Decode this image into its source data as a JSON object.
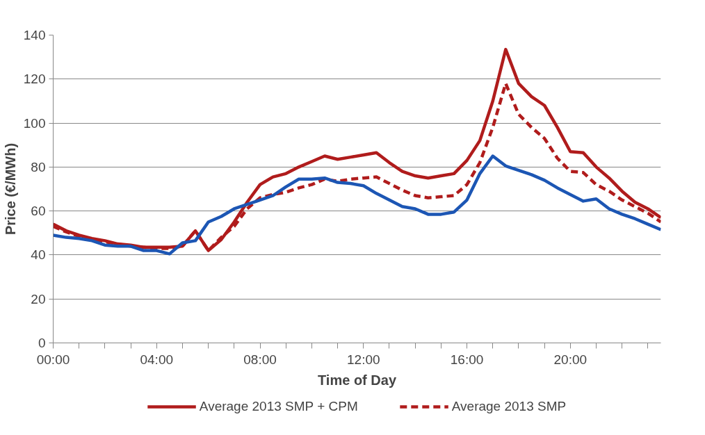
{
  "chart_data": {
    "type": "line",
    "xlabel": "Time of Day",
    "ylabel": "Price (€/MWh)",
    "x": [
      0,
      0.5,
      1,
      1.5,
      2,
      2.5,
      3,
      3.5,
      4,
      4.5,
      5,
      5.5,
      6,
      6.5,
      7,
      7.5,
      8,
      8.5,
      9,
      9.5,
      10,
      10.5,
      11,
      11.5,
      12,
      12.5,
      13,
      13.5,
      14,
      14.5,
      15,
      15.5,
      16,
      16.5,
      17,
      17.5,
      18,
      18.5,
      19,
      19.5,
      20,
      20.5,
      21,
      21.5,
      22,
      22.5,
      23,
      23.5
    ],
    "series": [
      {
        "name": "Average 2013 SMP + CPM",
        "color": "#b01c1c",
        "line_style": "solid",
        "values": [
          54,
          51,
          49,
          47.5,
          46.5,
          45,
          44.5,
          43.5,
          43.5,
          43.5,
          44,
          51,
          42,
          47,
          55,
          64,
          72,
          75.5,
          77,
          80,
          82.5,
          85,
          83.5,
          84.5,
          85.5,
          86.5,
          82,
          78,
          76,
          75,
          76,
          77,
          83,
          92,
          110,
          133.5,
          118,
          112,
          108,
          98,
          87,
          86.5,
          80,
          75,
          69,
          64,
          61,
          57
        ]
      },
      {
        "name": "Average 2013 SMP",
        "color": "#b01c1c",
        "line_style": "dashed",
        "values": [
          53,
          50.5,
          48.5,
          47,
          46,
          45,
          44,
          43.5,
          43,
          43,
          44,
          51,
          42,
          48,
          53,
          61,
          66,
          67.5,
          68.5,
          70.5,
          72,
          74.5,
          73.5,
          74.5,
          75,
          75.5,
          72.5,
          69.5,
          67,
          66,
          66.5,
          67,
          72,
          82,
          98,
          118,
          104,
          98,
          93,
          84,
          78,
          77.5,
          72,
          69,
          65,
          62,
          59,
          55
        ]
      },
      {
        "color": "#1c56b4",
        "line_style": "solid",
        "values": [
          49,
          48,
          47.5,
          46.5,
          44.5,
          44,
          44,
          42,
          42,
          40.5,
          45.5,
          46.5,
          55,
          57.5,
          61,
          63,
          65,
          67,
          71,
          74.5,
          74.5,
          75,
          73,
          72.5,
          71.5,
          68,
          65,
          62,
          61,
          58.5,
          58.5,
          59.5,
          65,
          77,
          85,
          80.5,
          78.5,
          76.5,
          74,
          70.5,
          67.5,
          64.5,
          65.5,
          61,
          58.5,
          56.5,
          54,
          51.5
        ]
      }
    ],
    "xlim": [
      0,
      23.5
    ],
    "xticks": [
      {
        "value": 0,
        "label": "00:00"
      },
      {
        "value": 1,
        "label": null
      },
      {
        "value": 2,
        "label": null
      },
      {
        "value": 3,
        "label": null
      },
      {
        "value": 4,
        "label": "04:00"
      },
      {
        "value": 5,
        "label": null
      },
      {
        "value": 6,
        "label": null
      },
      {
        "value": 7,
        "label": null
      },
      {
        "value": 8,
        "label": "08:00"
      },
      {
        "value": 9,
        "label": null
      },
      {
        "value": 10,
        "label": null
      },
      {
        "value": 11,
        "label": null
      },
      {
        "value": 12,
        "label": "12:00"
      },
      {
        "value": 13,
        "label": null
      },
      {
        "value": 14,
        "label": null
      },
      {
        "value": 15,
        "label": null
      },
      {
        "value": 16,
        "label": "16:00"
      },
      {
        "value": 17,
        "label": null
      },
      {
        "value": 18,
        "label": null
      },
      {
        "value": 19,
        "label": null
      },
      {
        "value": 20,
        "label": "20:00"
      },
      {
        "value": 21,
        "label": null
      },
      {
        "value": 22,
        "label": null
      },
      {
        "value": 23,
        "label": null
      }
    ],
    "ylim": [
      0,
      140
    ],
    "yticks": [
      0,
      20,
      40,
      60,
      80,
      100,
      120,
      140
    ],
    "grid": "y",
    "legend": "bottom",
    "marker": "none"
  }
}
